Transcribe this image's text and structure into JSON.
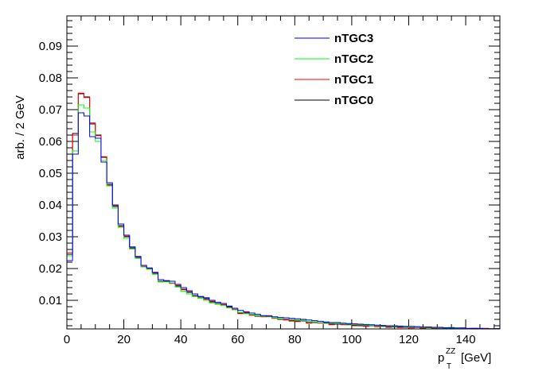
{
  "chart_data": {
    "type": "line",
    "xlabel_main": "p",
    "xlabel_sup": "ZZ",
    "xlabel_sub": "T",
    "xlabel_unit": "[GeV]",
    "ylabel": "arb. / 2 GeV",
    "xlim": [
      0,
      152
    ],
    "ylim": [
      0.001,
      0.0995
    ],
    "xticks": [
      0,
      20,
      40,
      60,
      80,
      100,
      120,
      140
    ],
    "xtick_labels": [
      "0",
      "20",
      "40",
      "60",
      "80",
      "100",
      "120",
      "140"
    ],
    "yticks": [
      0.01,
      0.02,
      0.03,
      0.04,
      0.05,
      0.06,
      0.07,
      0.08,
      0.09
    ],
    "ytick_labels": [
      "0.01",
      "0.02",
      "0.03",
      "0.04",
      "0.05",
      "0.06",
      "0.07",
      "0.08",
      "0.09"
    ],
    "bin_width": 2,
    "x_start": 0,
    "legend_position": "top-right",
    "series": [
      {
        "name": "nTGC0",
        "color": "#000000",
        "values": [
          0.0245,
          0.0625,
          0.075,
          0.074,
          0.0655,
          0.062,
          0.055,
          0.0465,
          0.0395,
          0.0335,
          0.03,
          0.0265,
          0.0235,
          0.0205,
          0.02,
          0.0185,
          0.016,
          0.016,
          0.0155,
          0.0145,
          0.0135,
          0.0125,
          0.0115,
          0.011,
          0.0105,
          0.0095,
          0.009,
          0.0085,
          0.008,
          0.007,
          0.006,
          0.006,
          0.0055,
          0.005,
          0.005,
          0.005,
          0.0045,
          0.004,
          0.004,
          0.0035,
          0.0035,
          0.0035,
          0.003,
          0.003,
          0.003,
          0.0028,
          0.0025,
          0.0025,
          0.0025,
          0.0023,
          0.0022,
          0.002,
          0.002,
          0.002,
          0.0019,
          0.0018,
          0.0017,
          0.0016,
          0.0016,
          0.0015,
          0.0015,
          0.0015,
          0.0014,
          0.0014,
          0.0013,
          0.0013,
          0.0012,
          0.0012,
          0.0012,
          0.0011,
          0.0011,
          0.001,
          0.001,
          0.001,
          0.001,
          0.001
        ]
      },
      {
        "name": "nTGC1",
        "color": "#ff0000",
        "values": [
          0.025,
          0.062,
          0.0752,
          0.0738,
          0.0658,
          0.0618,
          0.0552,
          0.0462,
          0.0398,
          0.0332,
          0.0302,
          0.0262,
          0.0237,
          0.0207,
          0.0198,
          0.0187,
          0.0158,
          0.0162,
          0.0153,
          0.0147,
          0.0133,
          0.0127,
          0.0113,
          0.0112,
          0.0103,
          0.0097,
          0.0088,
          0.0087,
          0.0078,
          0.0072,
          0.0058,
          0.0062,
          0.0053,
          0.0052,
          0.0048,
          0.0052,
          0.0043,
          0.0042,
          0.0038,
          0.0037,
          0.0033,
          0.0037,
          0.0028,
          0.0032,
          0.0028,
          0.003,
          0.0023,
          0.0027,
          0.0023,
          0.0025,
          0.002,
          0.0022,
          0.0018,
          0.0022,
          0.0017,
          0.002,
          0.0015,
          0.0018,
          0.0014,
          0.0017,
          0.0013,
          0.0017,
          0.0012,
          0.0016,
          0.0011,
          0.0015,
          0.001,
          0.0014,
          0.001,
          0.0013,
          0.001,
          0.0012,
          0.001,
          0.0012,
          0.001,
          0.0011
        ]
      },
      {
        "name": "nTGC2",
        "color": "#00ff00",
        "values": [
          0.024,
          0.057,
          0.0715,
          0.0705,
          0.063,
          0.06,
          0.054,
          0.046,
          0.039,
          0.033,
          0.0295,
          0.0262,
          0.0232,
          0.0205,
          0.0198,
          0.0182,
          0.0158,
          0.0158,
          0.0155,
          0.0142,
          0.0128,
          0.012,
          0.0112,
          0.0106,
          0.01,
          0.0092,
          0.0088,
          0.0084,
          0.0076,
          0.007,
          0.0062,
          0.0058,
          0.0056,
          0.0052,
          0.005,
          0.0048,
          0.0045,
          0.0042,
          0.0045,
          0.004,
          0.0038,
          0.0036,
          0.0034,
          0.0032,
          0.003,
          0.003,
          0.0028,
          0.0027,
          0.0026,
          0.0025,
          0.0024,
          0.0023,
          0.0022,
          0.0021,
          0.002,
          0.002,
          0.0019,
          0.0018,
          0.0018,
          0.0017,
          0.0016,
          0.0016,
          0.0015,
          0.0015,
          0.0014,
          0.0014,
          0.0013,
          0.0013,
          0.0012,
          0.0012,
          0.0011,
          0.0011,
          0.0011,
          0.001,
          0.001,
          0.001
        ]
      },
      {
        "name": "nTGC3",
        "color": "#0000ff",
        "values": [
          0.0225,
          0.056,
          0.069,
          0.068,
          0.0615,
          0.061,
          0.0535,
          0.047,
          0.04,
          0.034,
          0.0305,
          0.0268,
          0.0238,
          0.021,
          0.0202,
          0.0188,
          0.0165,
          0.0162,
          0.016,
          0.015,
          0.014,
          0.013,
          0.012,
          0.0112,
          0.0108,
          0.01,
          0.0094,
          0.009,
          0.0082,
          0.0075,
          0.0068,
          0.0064,
          0.006,
          0.0056,
          0.0052,
          0.005,
          0.0048,
          0.0046,
          0.0045,
          0.0043,
          0.0042,
          0.004,
          0.0038,
          0.0036,
          0.0034,
          0.0032,
          0.003,
          0.003,
          0.0028,
          0.0027,
          0.0026,
          0.0025,
          0.0024,
          0.0023,
          0.0022,
          0.0021,
          0.002,
          0.002,
          0.0019,
          0.0018,
          0.0018,
          0.0017,
          0.0016,
          0.0016,
          0.0015,
          0.0015,
          0.0014,
          0.0014,
          0.0013,
          0.0013,
          0.0012,
          0.0012,
          0.0012,
          0.0011,
          0.0011,
          0.0011
        ]
      }
    ],
    "legend_order": [
      "nTGC3",
      "nTGC2",
      "nTGC1",
      "nTGC0"
    ]
  }
}
